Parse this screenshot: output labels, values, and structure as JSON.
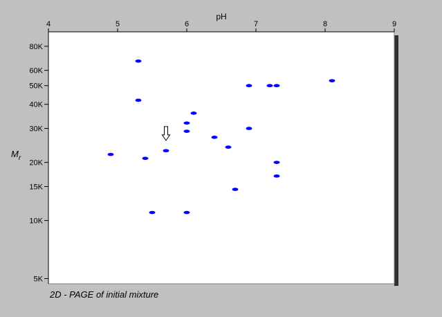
{
  "chart_data": {
    "type": "scatter",
    "xlabel": "pH",
    "ylabel_main": "M",
    "ylabel_sub": "r",
    "caption": "2D - PAGE of initial mixture",
    "xlim": [
      4,
      9
    ],
    "x_ticks": [
      4,
      5,
      6,
      7,
      8,
      9
    ],
    "x_tick_labels": [
      "4",
      "5",
      "6",
      "7",
      "8",
      "9"
    ],
    "y_scale": "log",
    "ylim": [
      4700,
      95000
    ],
    "y_ticks": [
      80000,
      60000,
      50000,
      40000,
      30000,
      20000,
      15000,
      10000,
      5000
    ],
    "y_tick_labels": [
      "80K",
      "60K",
      "50K",
      "40K",
      "30K",
      "20K",
      "15K",
      "10K",
      "5K"
    ],
    "grid": false,
    "marker_color": "#0000ff",
    "arrow_marker": {
      "x": 5.7,
      "y": 26000
    },
    "points": [
      {
        "x": 5.3,
        "y": 67000
      },
      {
        "x": 5.3,
        "y": 42000
      },
      {
        "x": 6.9,
        "y": 50000
      },
      {
        "x": 7.2,
        "y": 50000
      },
      {
        "x": 7.3,
        "y": 50000
      },
      {
        "x": 8.1,
        "y": 53000
      },
      {
        "x": 6.1,
        "y": 36000
      },
      {
        "x": 6.0,
        "y": 32000
      },
      {
        "x": 6.0,
        "y": 29000
      },
      {
        "x": 6.9,
        "y": 30000
      },
      {
        "x": 6.4,
        "y": 27000
      },
      {
        "x": 6.6,
        "y": 24000
      },
      {
        "x": 5.7,
        "y": 23000
      },
      {
        "x": 4.9,
        "y": 22000
      },
      {
        "x": 5.4,
        "y": 21000
      },
      {
        "x": 7.3,
        "y": 20000
      },
      {
        "x": 7.3,
        "y": 17000
      },
      {
        "x": 6.7,
        "y": 14500
      },
      {
        "x": 5.5,
        "y": 11000
      },
      {
        "x": 6.0,
        "y": 11000
      }
    ]
  }
}
